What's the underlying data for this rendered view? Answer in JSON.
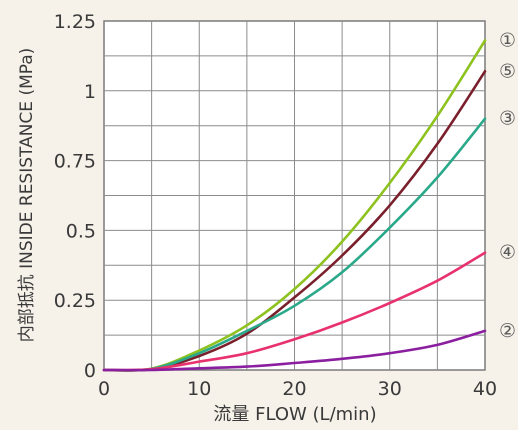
{
  "chart_data": {
    "type": "line",
    "xlabel": "流量 FLOW (L/min)",
    "ylabel": "内部抵抗 INSIDE RESISTANCE (MPa)",
    "xlim": [
      0,
      40
    ],
    "ylim": [
      0,
      1.25
    ],
    "x_ticks": [
      "0",
      "10",
      "20",
      "30",
      "40"
    ],
    "y_ticks": [
      "0",
      "0.25",
      "0.5",
      "0.75",
      "1",
      "1.25"
    ],
    "grid": true,
    "x": [
      0,
      5,
      10,
      15,
      20,
      25,
      30,
      35,
      40
    ],
    "series": [
      {
        "name": "①",
        "color": "#8dc21f",
        "values": [
          0,
          0.005,
          0.07,
          0.16,
          0.29,
          0.46,
          0.67,
          0.91,
          1.18
        ]
      },
      {
        "name": "⑤",
        "color": "#7a1f2c",
        "values": [
          0,
          0.003,
          0.05,
          0.13,
          0.26,
          0.41,
          0.59,
          0.81,
          1.07
        ]
      },
      {
        "name": "③",
        "color": "#2aa88a",
        "values": [
          0,
          0.004,
          0.06,
          0.14,
          0.23,
          0.35,
          0.51,
          0.69,
          0.9
        ]
      },
      {
        "name": "④",
        "color": "#e8326e",
        "values": [
          0,
          0.003,
          0.03,
          0.06,
          0.11,
          0.17,
          0.24,
          0.32,
          0.42
        ]
      },
      {
        "name": "②",
        "color": "#8a1fa0",
        "values": [
          0,
          0.0,
          0.006,
          0.012,
          0.025,
          0.04,
          0.06,
          0.09,
          0.14
        ]
      }
    ]
  }
}
